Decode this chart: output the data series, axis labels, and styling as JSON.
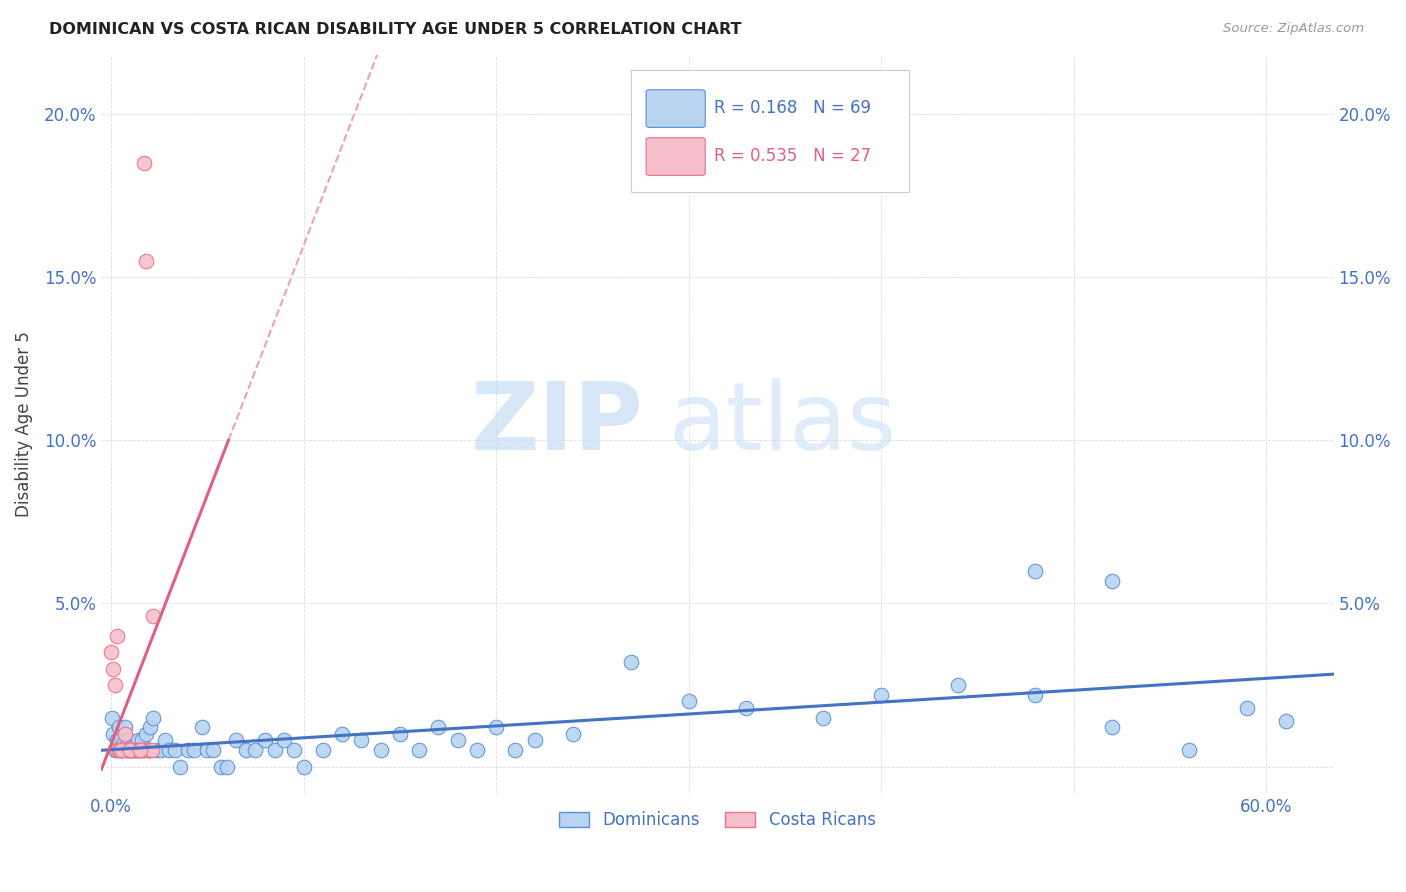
{
  "title": "DOMINICAN VS COSTA RICAN DISABILITY AGE UNDER 5 CORRELATION CHART",
  "source": "Source: ZipAtlas.com",
  "ylabel": "Disability Age Under 5",
  "xlim": [
    -0.005,
    0.635
  ],
  "ylim": [
    -0.008,
    0.218
  ],
  "xtick_positions": [
    0.0,
    0.1,
    0.2,
    0.3,
    0.4,
    0.5,
    0.6
  ],
  "xtick_labels": [
    "0.0%",
    "",
    "",
    "",
    "",
    "",
    "60.0%"
  ],
  "ytick_positions": [
    0.0,
    0.05,
    0.1,
    0.15,
    0.2
  ],
  "ytick_labels": [
    "",
    "5.0%",
    "10.0%",
    "15.0%",
    "20.0%"
  ],
  "dominicans_fill": "#b8d4f0",
  "dominicans_edge": "#5b8fd4",
  "costa_ricans_fill": "#f5c0cc",
  "costa_ricans_edge": "#e8708a",
  "dominicans_line_color": "#4472c4",
  "costa_ricans_line_color": "#e06080",
  "diagonal_line_color": "#f0a0b0",
  "R_dominicans": 0.168,
  "N_dominicans": 69,
  "R_costa_ricans": 0.535,
  "N_costa_ricans": 27,
  "legend_label_dominicans": "Dominicans",
  "legend_label_costa_ricans": "Costa Ricans",
  "watermark_zip": "ZIP",
  "watermark_atlas": "atlas",
  "dom_x": [
    0.0005,
    0.001,
    0.002,
    0.003,
    0.004,
    0.005,
    0.006,
    0.007,
    0.008,
    0.009,
    0.01,
    0.011,
    0.012,
    0.013,
    0.014,
    0.015,
    0.016,
    0.017,
    0.018,
    0.019,
    0.02,
    0.022,
    0.024,
    0.026,
    0.028,
    0.03,
    0.033,
    0.036,
    0.04,
    0.043,
    0.047,
    0.05,
    0.053,
    0.057,
    0.06,
    0.065,
    0.07,
    0.075,
    0.08,
    0.085,
    0.09,
    0.095,
    0.1,
    0.11,
    0.12,
    0.13,
    0.14,
    0.15,
    0.16,
    0.17,
    0.18,
    0.19,
    0.2,
    0.21,
    0.22,
    0.24,
    0.27,
    0.3,
    0.33,
    0.37,
    0.4,
    0.44,
    0.48,
    0.52,
    0.56,
    0.59,
    0.61,
    0.48,
    0.52
  ],
  "dom_y": [
    0.015,
    0.01,
    0.005,
    0.008,
    0.012,
    0.005,
    0.007,
    0.012,
    0.005,
    0.008,
    0.005,
    0.006,
    0.005,
    0.005,
    0.008,
    0.005,
    0.008,
    0.005,
    0.01,
    0.005,
    0.012,
    0.015,
    0.005,
    0.005,
    0.008,
    0.005,
    0.005,
    0.0,
    0.005,
    0.005,
    0.012,
    0.005,
    0.005,
    0.0,
    0.0,
    0.008,
    0.005,
    0.005,
    0.008,
    0.005,
    0.008,
    0.005,
    0.0,
    0.005,
    0.01,
    0.008,
    0.005,
    0.01,
    0.005,
    0.012,
    0.008,
    0.005,
    0.012,
    0.005,
    0.008,
    0.01,
    0.032,
    0.02,
    0.018,
    0.015,
    0.022,
    0.025,
    0.06,
    0.057,
    0.005,
    0.018,
    0.014,
    0.022,
    0.012
  ],
  "cr_x": [
    0.0,
    0.001,
    0.002,
    0.003,
    0.003,
    0.004,
    0.005,
    0.006,
    0.007,
    0.008,
    0.009,
    0.01,
    0.011,
    0.012,
    0.013,
    0.014,
    0.015,
    0.016,
    0.017,
    0.018,
    0.019,
    0.02,
    0.021,
    0.022,
    0.005,
    0.01,
    0.015
  ],
  "cr_y": [
    0.035,
    0.03,
    0.025,
    0.005,
    0.04,
    0.005,
    0.005,
    0.005,
    0.01,
    0.005,
    0.005,
    0.005,
    0.005,
    0.005,
    0.005,
    0.005,
    0.005,
    0.005,
    0.185,
    0.155,
    0.005,
    0.005,
    0.005,
    0.046,
    0.005,
    0.005,
    0.005
  ]
}
